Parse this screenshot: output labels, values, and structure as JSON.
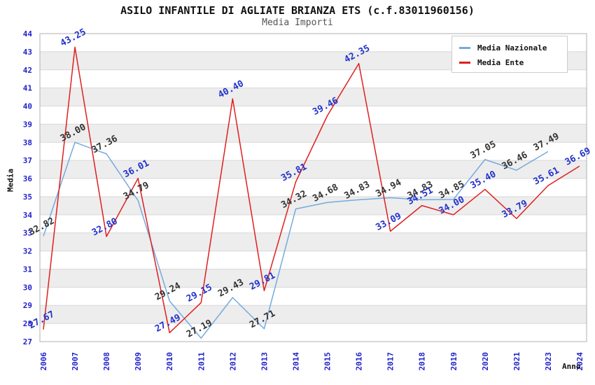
{
  "chart_data": {
    "type": "line",
    "title": "ASILO INFANTILE DI AGLIATE BRIANZA ETS (c.f.83011960156)",
    "subtitle": "Media Importi",
    "xlabel": "Anno",
    "ylabel": "Media",
    "ylim": [
      27,
      44
    ],
    "ytick_step": 1,
    "grid": "horizontal",
    "legend_position": "top-right",
    "band_colors": [
      "#ffffff",
      "#ededed"
    ],
    "gridline_color": "#d8d8d8",
    "border_color": "#b0b0b0",
    "tick_label_color": "#2222cc",
    "categories": [
      "2006",
      "2007",
      "2008",
      "2009",
      "2010",
      "2011",
      "2012",
      "2013",
      "2014",
      "2015",
      "2016",
      "2017",
      "2018",
      "2019",
      "2020",
      "2021",
      "2023",
      "2024"
    ],
    "series": [
      {
        "name": "Media Nazionale",
        "color": "#74aade",
        "label_color": "#333333",
        "values": [
          32.82,
          38.0,
          37.36,
          34.79,
          29.24,
          27.19,
          29.43,
          27.71,
          34.32,
          34.68,
          34.83,
          34.94,
          34.83,
          34.85,
          37.05,
          36.46,
          37.49,
          null
        ]
      },
      {
        "name": "Media Ente",
        "color": "#e01f1f",
        "label_color": "#2233cc",
        "values": [
          27.67,
          43.25,
          32.8,
          36.01,
          27.49,
          29.15,
          40.4,
          29.81,
          35.81,
          39.46,
          42.35,
          33.09,
          34.51,
          34.0,
          35.4,
          33.79,
          35.61,
          36.69
        ]
      }
    ]
  }
}
